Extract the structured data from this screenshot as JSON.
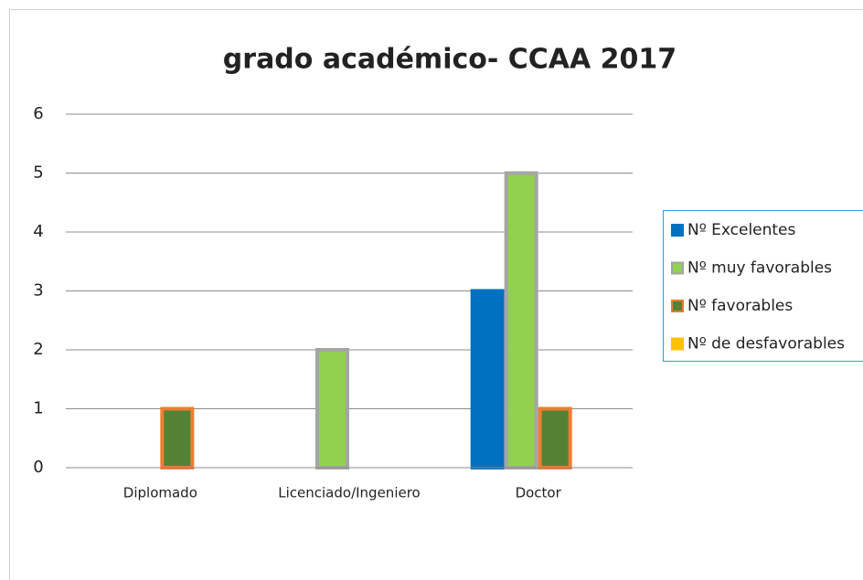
{
  "chart_data": {
    "type": "bar",
    "title": "grado académico- CCAA 2017",
    "categories": [
      "Diplomado",
      "Licenciado/Ingeniero",
      "Doctor"
    ],
    "series": [
      {
        "name": "Nº Excelentes",
        "color": "#0070c0",
        "edge_color": "#0070c0",
        "values": [
          0,
          0,
          3
        ]
      },
      {
        "name": "Nº muy favorables",
        "color": "#92d050",
        "edge_color": "#a5a5a5",
        "values": [
          0,
          2,
          5
        ]
      },
      {
        "name": "Nº favorables",
        "color": "#548235",
        "edge_color": "#ed7d31",
        "values": [
          1,
          0,
          1
        ]
      },
      {
        "name": "Nº de desfavorables",
        "color": "#ffc000",
        "edge_color": "#ffc000",
        "values": [
          0,
          0,
          0
        ]
      }
    ],
    "ylim": [
      0,
      6
    ],
    "yticks": [
      0,
      1,
      2,
      3,
      4,
      5,
      6
    ],
    "grid": true,
    "legend": "right"
  }
}
